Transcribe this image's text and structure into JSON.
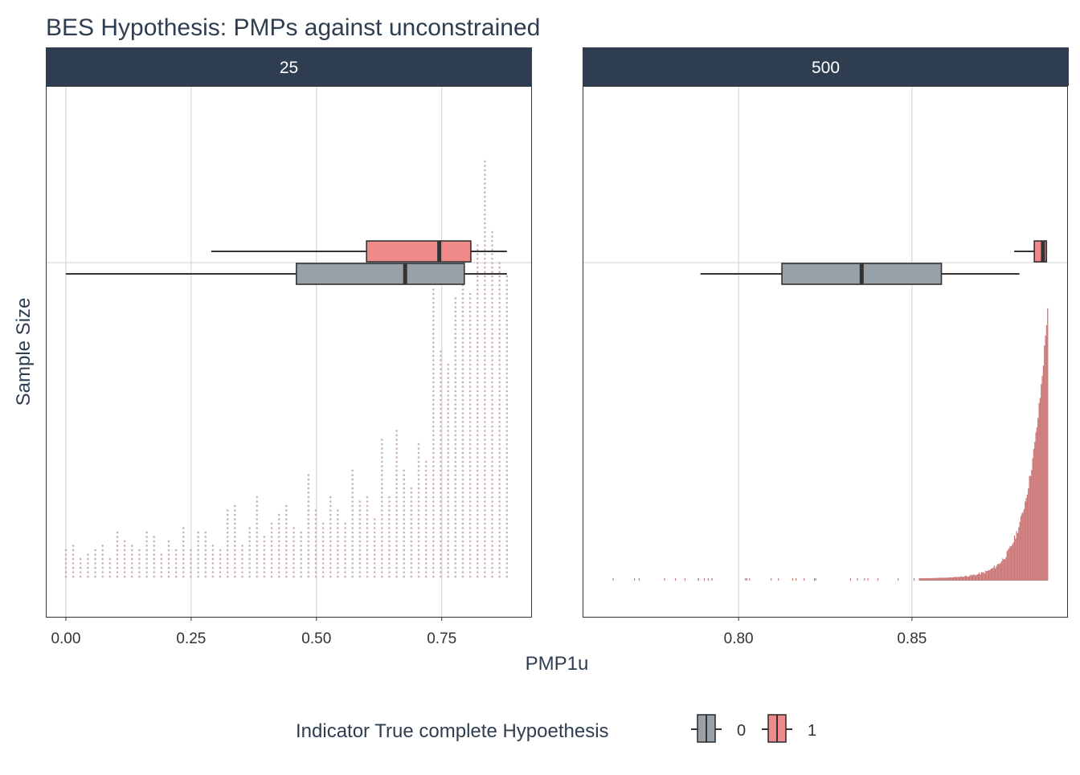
{
  "chart_data": {
    "type": "boxplot_dotplot_faceted",
    "title": "BES Hypothesis: PMPs against unconstrained",
    "xlabel": "PMP1u",
    "ylabel": "Sample Size",
    "legend": {
      "title": "Indicator True complete Hypoethesis",
      "position": "bottom",
      "entries": [
        {
          "label": "0",
          "color": "#98a0a8"
        },
        {
          "label": "1",
          "color": "#f08a8a"
        }
      ]
    },
    "panels": [
      {
        "facet_label": "25",
        "xlim": [
          -0.04,
          0.93
        ],
        "xticks": [
          0.0,
          0.25,
          0.5,
          0.75
        ],
        "xtick_labels": [
          "0.00",
          "0.25",
          "0.50",
          "0.75"
        ],
        "boxes": [
          {
            "group": "1",
            "lower_whisker": 0.29,
            "q1": 0.6,
            "median": 0.745,
            "q3": 0.808,
            "upper_whisker": 0.88
          },
          {
            "group": "0",
            "lower_whisker": 0.0,
            "q1": 0.46,
            "median": 0.677,
            "q3": 0.795,
            "upper_whisker": 0.88
          }
        ],
        "dot_range": [
          0.0,
          0.88
        ],
        "dot_peak": 0.84
      },
      {
        "facet_label": "500",
        "xlim": [
          0.755,
          0.895
        ],
        "xticks": [
          0.8,
          0.85
        ],
        "xtick_labels": [
          "0.80",
          "0.85"
        ],
        "boxes": [
          {
            "group": "1",
            "lower_whisker": 0.8795,
            "q1": 0.8853,
            "median": 0.8878,
            "q3": 0.8888,
            "upper_whisker": 0.889
          },
          {
            "group": "0",
            "lower_whisker": 0.789,
            "q1": 0.8125,
            "median": 0.8355,
            "q3": 0.8585,
            "upper_whisker": 0.881
          }
        ],
        "dot_range": [
          0.76,
          0.889
        ],
        "dot_peak": 0.889
      }
    ]
  },
  "colors": {
    "strip": "#2e3e50",
    "box_0": "#98a0a8",
    "box_1": "#f08a8a",
    "dots": "#c9b0b4",
    "dots_dense": "#c06060"
  }
}
